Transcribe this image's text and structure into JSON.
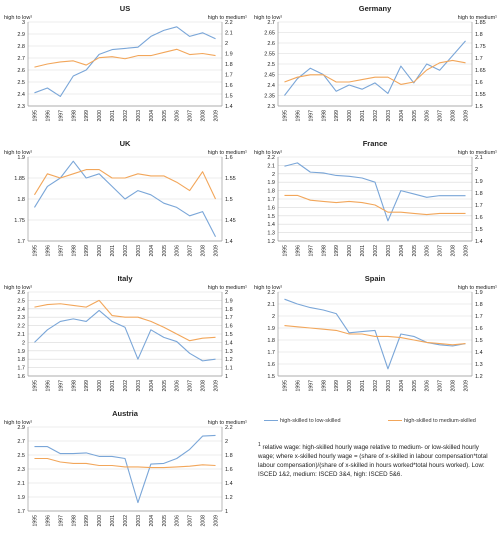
{
  "colors": {
    "high_low": "#7aa6d8",
    "high_medium": "#f2a65a",
    "grid": "#d9d9d9",
    "axis": "#9a9a9a",
    "text": "#222222"
  },
  "legend": {
    "high_low": "high-skilled to low-skilled",
    "high_medium": "high-skilled to medium-skilled"
  },
  "note": {
    "marker": "1",
    "text": "relative wage: high-skilled hourly wage relative to medium- or low-skilled hourly wage; where x-skilled hourly wage = (share of x-skilled in labour compensation*total labour compensation)/(share of x-skilled in hours worked*total hours worked). Low: ISCED 1&2, medium: ISCED 3&4, high: ISCED 5&6."
  },
  "chart_data": [
    {
      "type": "line",
      "title": "US",
      "left_axis_label": "high to low¹",
      "right_axis_label": "high to medium¹",
      "x": [
        "1995",
        "1996",
        "1997",
        "1998",
        "1999",
        "2000",
        "2001",
        "2002",
        "2003",
        "2004",
        "2005",
        "2006",
        "2007",
        "2008",
        "2009"
      ],
      "left_ylim": [
        2.3,
        3
      ],
      "left_ticks": [
        "2.3",
        "2.4",
        "2.5",
        "2.6",
        "2.7",
        "2.8",
        "2.9",
        "3"
      ],
      "right_ylim": [
        1.4,
        2.2
      ],
      "right_ticks": [
        "1.4",
        "1.5",
        "1.6",
        "1.7",
        "1.8",
        "1.9",
        "2",
        "2.1",
        "2.2"
      ],
      "series": [
        {
          "name": "high-skilled to low-skilled",
          "axis": "left",
          "values": [
            2.41,
            2.45,
            2.38,
            2.55,
            2.6,
            2.73,
            2.77,
            2.78,
            2.79,
            2.88,
            2.93,
            2.96,
            2.88,
            2.91,
            2.86
          ]
        },
        {
          "name": "high-skilled to medium-skilled",
          "axis": "right",
          "values": [
            1.77,
            1.8,
            1.82,
            1.83,
            1.79,
            1.86,
            1.87,
            1.85,
            1.88,
            1.88,
            1.91,
            1.94,
            1.89,
            1.9,
            1.88
          ]
        }
      ]
    },
    {
      "type": "line",
      "title": "Germany",
      "left_axis_label": "high to low¹",
      "right_axis_label": "high to medium¹",
      "x": [
        "1995",
        "1996",
        "1997",
        "1998",
        "1999",
        "2000",
        "2001",
        "2002",
        "2003",
        "2004",
        "2005",
        "2006",
        "2007",
        "2008",
        "2009"
      ],
      "left_ylim": [
        2.3,
        2.7
      ],
      "left_ticks": [
        "2.3",
        "2.35",
        "2.4",
        "2.45",
        "2.5",
        "2.55",
        "2.6",
        "2.65",
        "2.7"
      ],
      "right_ylim": [
        1.5,
        1.85
      ],
      "right_ticks": [
        "1.5",
        "1.55",
        "1.6",
        "1.65",
        "1.7",
        "1.75",
        "1.8",
        "1.85"
      ],
      "series": [
        {
          "name": "high-skilled to low-skilled",
          "axis": "left",
          "values": [
            2.35,
            2.43,
            2.48,
            2.45,
            2.37,
            2.4,
            2.38,
            2.41,
            2.36,
            2.49,
            2.41,
            2.5,
            2.47,
            2.54,
            2.61
          ]
        },
        {
          "name": "high-skilled to medium-skilled",
          "axis": "right",
          "values": [
            1.6,
            1.62,
            1.63,
            1.63,
            1.6,
            1.6,
            1.61,
            1.62,
            1.62,
            1.59,
            1.6,
            1.65,
            1.68,
            1.69,
            1.68
          ]
        }
      ]
    },
    {
      "type": "line",
      "title": "UK",
      "left_axis_label": "high to low¹",
      "right_axis_label": "high to medium¹",
      "x": [
        "1995",
        "1996",
        "1997",
        "1998",
        "1999",
        "2000",
        "2001",
        "2002",
        "2003",
        "2004",
        "2005",
        "2006",
        "2007",
        "2008",
        "2009"
      ],
      "left_ylim": [
        1.7,
        1.9
      ],
      "left_ticks": [
        "1.7",
        "1.75",
        "1.8",
        "1.85",
        "1.9"
      ],
      "right_ylim": [
        1.4,
        1.6
      ],
      "right_ticks": [
        "1.4",
        "1.45",
        "1.5",
        "1.55",
        "1.6"
      ],
      "series": [
        {
          "name": "high-skilled to low-skilled",
          "axis": "left",
          "values": [
            1.78,
            1.83,
            1.85,
            1.89,
            1.85,
            1.86,
            1.83,
            1.8,
            1.82,
            1.81,
            1.79,
            1.78,
            1.76,
            1.77,
            1.71
          ]
        },
        {
          "name": "high-skilled to medium-skilled",
          "axis": "right",
          "values": [
            1.51,
            1.56,
            1.55,
            1.56,
            1.57,
            1.57,
            1.55,
            1.55,
            1.56,
            1.555,
            1.555,
            1.54,
            1.52,
            1.565,
            1.5
          ]
        }
      ]
    },
    {
      "type": "line",
      "title": "France",
      "left_axis_label": "high to low¹",
      "right_axis_label": "high to medium¹",
      "x": [
        "1995",
        "1996",
        "1997",
        "1998",
        "1999",
        "2000",
        "2001",
        "2002",
        "2003",
        "2004",
        "2005",
        "2006",
        "2007",
        "2008",
        "2009"
      ],
      "left_ylim": [
        1.2,
        2.2
      ],
      "left_ticks": [
        "1.2",
        "1.3",
        "1.4",
        "1.5",
        "1.6",
        "1.7",
        "1.8",
        "1.9",
        "2",
        "2.1",
        "2.2"
      ],
      "right_ylim": [
        1.4,
        2.1
      ],
      "right_ticks": [
        "1.4",
        "1.5",
        "1.6",
        "1.7",
        "1.8",
        "1.9",
        "2",
        "2.1"
      ],
      "series": [
        {
          "name": "high-skilled to low-skilled",
          "axis": "left",
          "values": [
            2.09,
            2.13,
            2.02,
            2.01,
            1.98,
            1.97,
            1.95,
            1.9,
            1.44,
            1.8,
            1.76,
            1.72,
            1.74,
            1.74,
            1.74
          ]
        },
        {
          "name": "high-skilled to medium-skilled",
          "axis": "right",
          "values": [
            1.78,
            1.78,
            1.74,
            1.73,
            1.72,
            1.73,
            1.72,
            1.7,
            1.64,
            1.64,
            1.63,
            1.62,
            1.63,
            1.63,
            1.63
          ]
        }
      ]
    },
    {
      "type": "line",
      "title": "Italy",
      "left_axis_label": "high to low¹",
      "right_axis_label": "high to medium¹",
      "x": [
        "1995",
        "1996",
        "1997",
        "1998",
        "1999",
        "2000",
        "2001",
        "2002",
        "2003",
        "2004",
        "2005",
        "2006",
        "2007",
        "2008",
        "2009"
      ],
      "left_ylim": [
        1.6,
        2.6
      ],
      "left_ticks": [
        "1.6",
        "1.7",
        "1.8",
        "1.9",
        "2",
        "2.1",
        "2.2",
        "2.3",
        "2.4",
        "2.5",
        "2.6"
      ],
      "right_ylim": [
        1,
        2
      ],
      "right_ticks": [
        "1",
        "1.1",
        "1.2",
        "1.3",
        "1.4",
        "1.5",
        "1.6",
        "1.7",
        "1.8",
        "1.9",
        "2"
      ],
      "series": [
        {
          "name": "high-skilled to low-skilled",
          "axis": "left",
          "values": [
            2.0,
            2.15,
            2.25,
            2.28,
            2.25,
            2.38,
            2.25,
            2.18,
            1.8,
            2.15,
            2.06,
            2.01,
            1.87,
            1.78,
            1.8
          ]
        },
        {
          "name": "high-skilled to medium-skilled",
          "axis": "right",
          "values": [
            1.82,
            1.85,
            1.86,
            1.84,
            1.82,
            1.9,
            1.72,
            1.7,
            1.7,
            1.65,
            1.58,
            1.5,
            1.42,
            1.45,
            1.46
          ]
        }
      ]
    },
    {
      "type": "line",
      "title": "Spain",
      "left_axis_label": "high to low¹",
      "right_axis_label": "high to medium¹",
      "x": [
        "1995",
        "1996",
        "1997",
        "1998",
        "1999",
        "2000",
        "2001",
        "2002",
        "2003",
        "2004",
        "2005",
        "2006",
        "2007",
        "2008",
        "2009"
      ],
      "left_ylim": [
        1.5,
        2.2
      ],
      "left_ticks": [
        "1.5",
        "1.6",
        "1.7",
        "1.8",
        "1.9",
        "2",
        "2.1",
        "2.2"
      ],
      "right_ylim": [
        1.2,
        1.9
      ],
      "right_ticks": [
        "1.2",
        "1.3",
        "1.4",
        "1.5",
        "1.6",
        "1.7",
        "1.8",
        "1.9"
      ],
      "series": [
        {
          "name": "high-skilled to low-skilled",
          "axis": "left",
          "values": [
            2.14,
            2.1,
            2.07,
            2.05,
            2.02,
            1.86,
            1.87,
            1.88,
            1.56,
            1.85,
            1.83,
            1.78,
            1.76,
            1.75,
            1.77
          ]
        },
        {
          "name": "high-skilled to medium-skilled",
          "axis": "right",
          "values": [
            1.62,
            1.61,
            1.6,
            1.59,
            1.58,
            1.55,
            1.55,
            1.53,
            1.53,
            1.52,
            1.5,
            1.48,
            1.47,
            1.46,
            1.47
          ]
        }
      ]
    },
    {
      "type": "line",
      "title": "Austria",
      "left_axis_label": "high to low¹",
      "right_axis_label": "high to medium¹",
      "x": [
        "1995",
        "1996",
        "1997",
        "1998",
        "1999",
        "2000",
        "2001",
        "2002",
        "2003",
        "2004",
        "2005",
        "2006",
        "2007",
        "2008",
        "2009"
      ],
      "left_ylim": [
        1.7,
        2.9
      ],
      "left_ticks": [
        "1.7",
        "1.9",
        "2.1",
        "2.3",
        "2.5",
        "2.7",
        "2.9"
      ],
      "right_ylim": [
        1,
        2.2
      ],
      "right_ticks": [
        "1",
        "1.2",
        "1.4",
        "1.6",
        "1.8",
        "2",
        "2.2"
      ],
      "series": [
        {
          "name": "high-skilled to low-skilled",
          "axis": "left",
          "values": [
            2.62,
            2.62,
            2.52,
            2.52,
            2.53,
            2.48,
            2.48,
            2.45,
            1.82,
            2.37,
            2.38,
            2.45,
            2.58,
            2.77,
            2.78
          ]
        },
        {
          "name": "high-skilled to medium-skilled",
          "axis": "right",
          "values": [
            1.75,
            1.75,
            1.7,
            1.68,
            1.68,
            1.65,
            1.65,
            1.63,
            1.63,
            1.62,
            1.62,
            1.63,
            1.64,
            1.66,
            1.65
          ]
        }
      ]
    }
  ]
}
